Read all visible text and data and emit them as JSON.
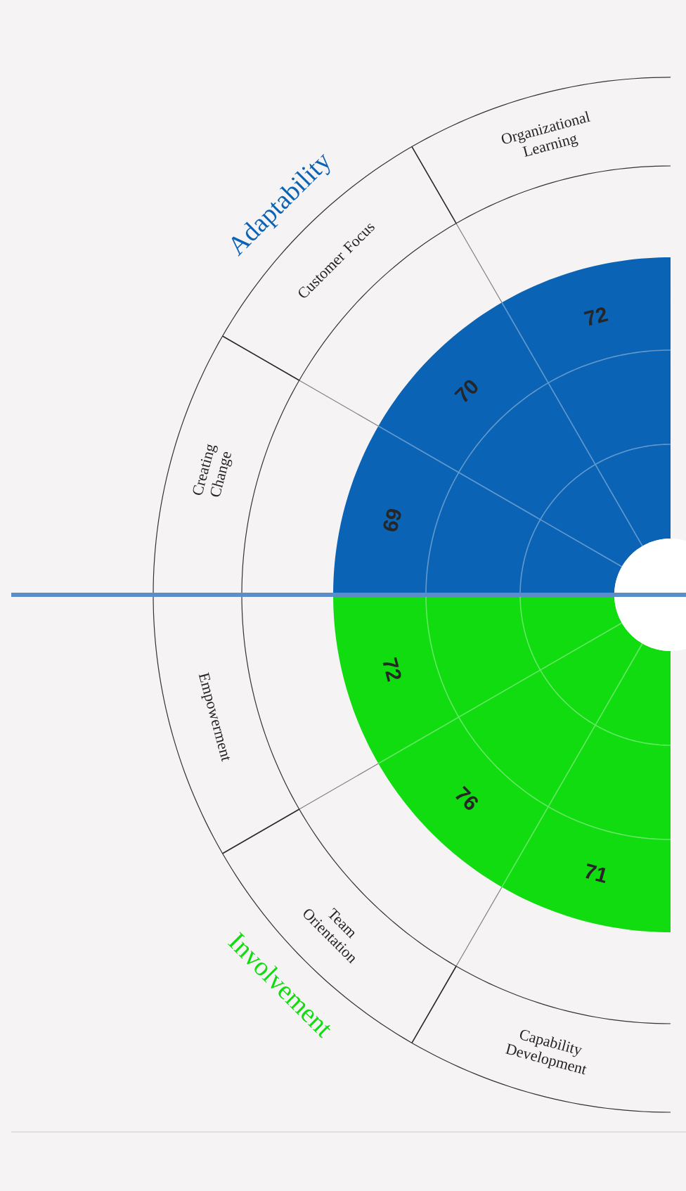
{
  "chart_data": {
    "type": "other",
    "categories": [
      "Creating Change",
      "Customer Focus",
      "Organizational Learning",
      "Empowerment",
      "Team Orientation",
      "Capability Development"
    ],
    "series": [
      {
        "name": "Adaptability",
        "color": "#0b63b5",
        "values": [
          69,
          70,
          72,
          null,
          null,
          null
        ]
      },
      {
        "name": "Involvement",
        "color": "#10dc10",
        "values": [
          null,
          null,
          null,
          72,
          76,
          71
        ]
      }
    ],
    "data_labels": true
  }
}
